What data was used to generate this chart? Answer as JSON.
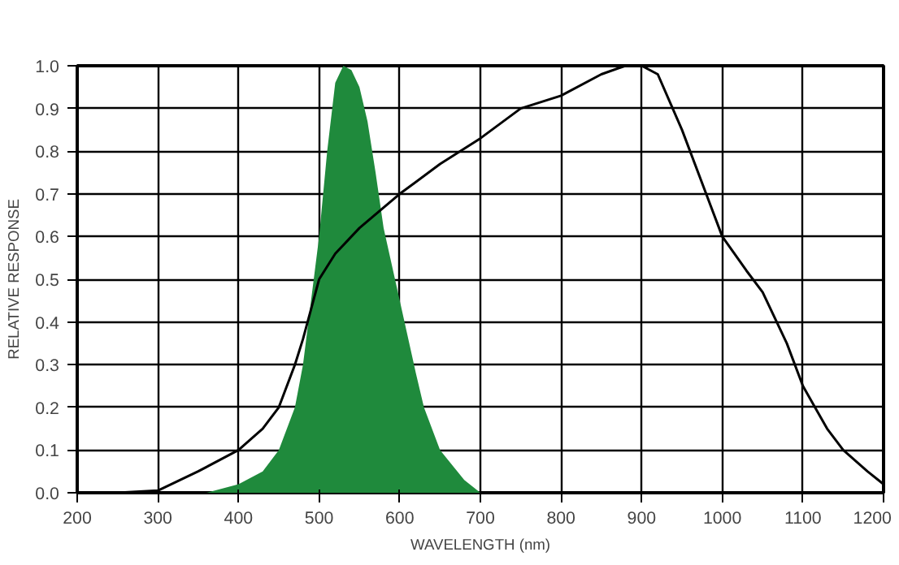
{
  "chart_data": {
    "type": "line",
    "xlabel": "WAVELENGTH (nm)",
    "ylabel": "RELATIVE RESPONSE",
    "xlim": [
      200,
      1200
    ],
    "xticks": [
      200,
      300,
      400,
      500,
      600,
      700,
      800,
      900,
      1000,
      1100,
      1200
    ],
    "ylim": [
      0,
      1
    ],
    "yticks": [
      {
        "value": 0,
        "label": "0.0"
      },
      0.1,
      0.2,
      0.3,
      0.4,
      0.5,
      0.6,
      0.7,
      0.8,
      0.9,
      {
        "value": 1,
        "label": "1.0"
      }
    ],
    "grid": true,
    "marker": "none",
    "line_style": "solid",
    "series": [
      {
        "type": "area",
        "color": "#1f8a3c",
        "x": [
          360,
          400,
          430,
          450,
          470,
          480,
          490,
          500,
          510,
          520,
          530,
          540,
          550,
          560,
          570,
          580,
          600,
          620,
          630,
          650,
          680,
          700
        ],
        "values": [
          0,
          0.02,
          0.05,
          0.1,
          0.2,
          0.3,
          0.45,
          0.6,
          0.8,
          0.96,
          1.0,
          0.99,
          0.95,
          0.87,
          0.75,
          0.62,
          0.45,
          0.28,
          0.2,
          0.1,
          0.03,
          0
        ]
      },
      {
        "color": "#000000",
        "x": [
          250,
          300,
          350,
          400,
          430,
          450,
          470,
          480,
          490,
          500,
          520,
          550,
          600,
          650,
          700,
          750,
          800,
          850,
          880,
          900,
          920,
          950,
          980,
          1000,
          1030,
          1050,
          1080,
          1100,
          1130,
          1150,
          1180,
          1200
        ],
        "values": [
          0,
          0.005,
          0.05,
          0.1,
          0.15,
          0.2,
          0.3,
          0.36,
          0.43,
          0.5,
          0.56,
          0.62,
          0.7,
          0.77,
          0.83,
          0.9,
          0.93,
          0.98,
          1.0,
          1.0,
          0.98,
          0.85,
          0.7,
          0.6,
          0.52,
          0.47,
          0.35,
          0.25,
          0.15,
          0.1,
          0.05,
          0.02
        ]
      }
    ]
  }
}
